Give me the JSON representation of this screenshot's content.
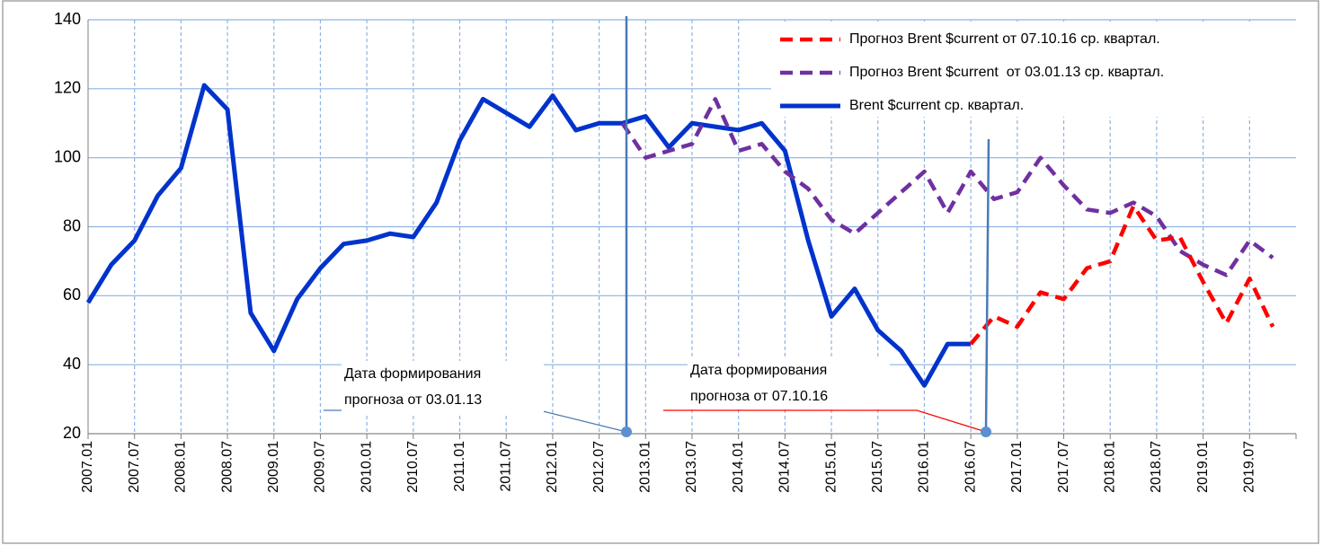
{
  "chart_data": {
    "type": "line",
    "categories": [
      "2007.01",
      null,
      "2007.07",
      null,
      "2008.01",
      null,
      "2008.07",
      null,
      "2009.01",
      null,
      "2009.07",
      null,
      "2010.01",
      null,
      "2010.07",
      null,
      "2011.01",
      null,
      "2011.07",
      null,
      "2012.01",
      null,
      "2012.07",
      null,
      "2013.01",
      null,
      "2013.07",
      null,
      "2014.01",
      null,
      "2014.07",
      null,
      "2015.01",
      null,
      "2015.07",
      null,
      "2016.01",
      null,
      "2016.07",
      null,
      "2017.01",
      null,
      "2017.07",
      null,
      "2018.01",
      null,
      "2018.07",
      null,
      "2019.01",
      null,
      "2019.07",
      null
    ],
    "series": [
      {
        "name": "Прогноз Brent $current от 07.10.16 ср. квартал.",
        "color": "#ff0000",
        "dashed": true,
        "values": [
          null,
          null,
          null,
          null,
          null,
          null,
          null,
          null,
          null,
          null,
          null,
          null,
          null,
          null,
          null,
          null,
          null,
          null,
          null,
          null,
          null,
          null,
          null,
          null,
          null,
          null,
          null,
          null,
          null,
          null,
          null,
          null,
          null,
          null,
          null,
          null,
          null,
          null,
          46,
          54,
          51,
          61,
          59,
          68,
          70,
          86,
          76,
          77,
          64,
          52,
          65,
          51
        ]
      },
      {
        "name": "Прогноз Brent $current  от 03.01.13 ср. квартал.",
        "color": "#7030a0",
        "dashed": true,
        "values": [
          null,
          null,
          null,
          null,
          null,
          null,
          null,
          null,
          null,
          null,
          null,
          null,
          null,
          null,
          null,
          null,
          null,
          null,
          null,
          null,
          null,
          null,
          null,
          110,
          100,
          102,
          104,
          117,
          102,
          104,
          96,
          91,
          82,
          78,
          84,
          90,
          96,
          84,
          96,
          88,
          90,
          100,
          92,
          85,
          84,
          87,
          83,
          73,
          69,
          66,
          76,
          71
        ]
      },
      {
        "name": "Brent $current ср. квартал.",
        "color": "#0033cc",
        "dashed": false,
        "values": [
          58,
          69,
          76,
          89,
          97,
          121,
          114,
          55,
          44,
          59,
          68,
          75,
          76,
          78,
          77,
          87,
          105,
          117,
          113,
          109,
          118,
          108,
          110,
          110,
          112,
          103,
          110,
          109,
          108,
          110,
          102,
          76,
          54,
          62,
          50,
          44,
          34,
          46,
          46,
          null,
          null,
          null,
          null,
          null,
          null,
          null,
          null,
          null,
          null,
          null,
          null,
          null
        ]
      }
    ],
    "ylim": [
      20,
      140
    ],
    "yticks": [
      20,
      40,
      60,
      80,
      100,
      120,
      140
    ],
    "grid": true,
    "legend": "top-right",
    "annotations": [
      {
        "lines": [
          "Дата формирования",
          "прогноза от 03.01.13"
        ]
      },
      {
        "lines": [
          "Дата формирования",
          "прогноза от 07.10.16"
        ]
      }
    ]
  }
}
